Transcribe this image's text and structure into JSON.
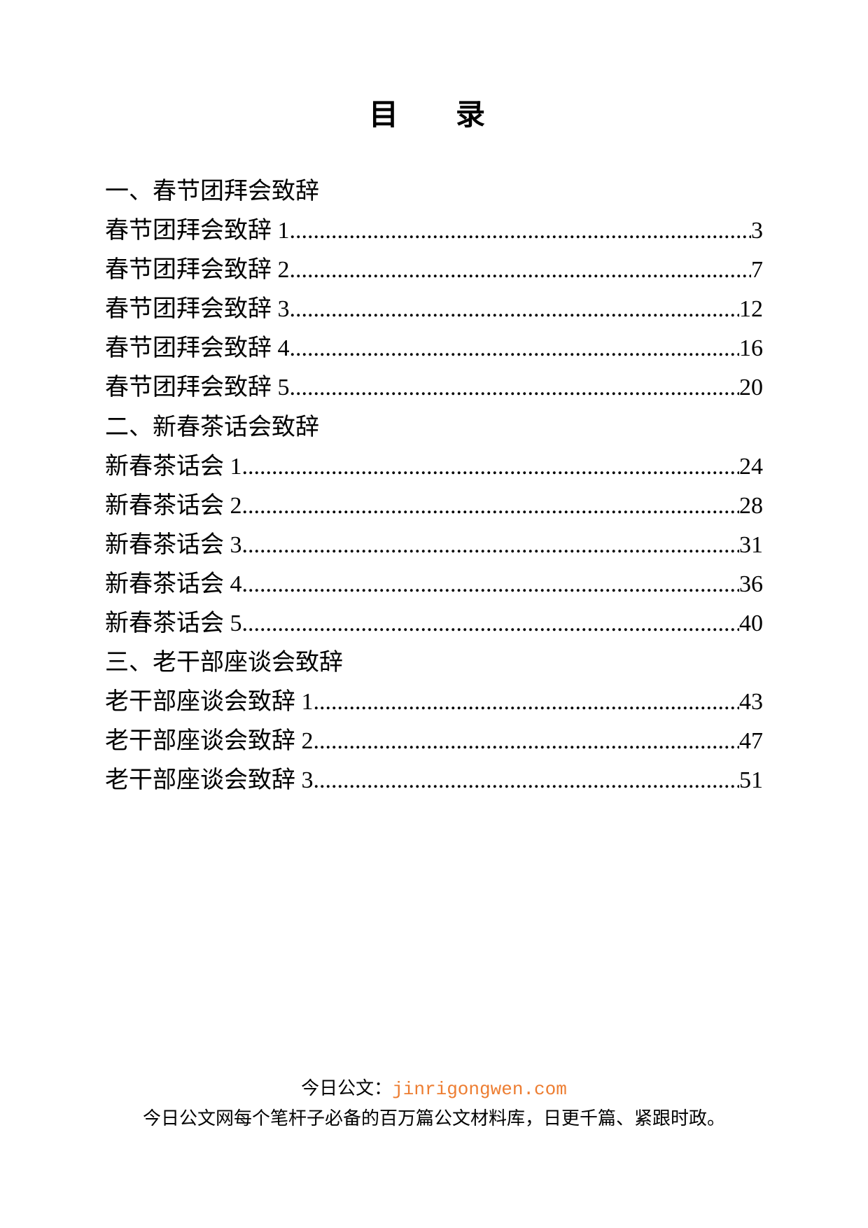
{
  "title": "目　录",
  "sections": [
    {
      "heading": "一、春节团拜会致辞",
      "entries": [
        {
          "label": "春节团拜会致辞 1",
          "page": "3"
        },
        {
          "label": "春节团拜会致辞 2",
          "page": "7"
        },
        {
          "label": "春节团拜会致辞 3",
          "page": "12"
        },
        {
          "label": "春节团拜会致辞 4",
          "page": "16"
        },
        {
          "label": "春节团拜会致辞 5",
          "page": "20"
        }
      ]
    },
    {
      "heading": "二、新春茶话会致辞",
      "entries": [
        {
          "label": "新春茶话会 1",
          "page": "24"
        },
        {
          "label": "新春茶话会 2",
          "page": "28"
        },
        {
          "label": "新春茶话会 3",
          "page": "31"
        },
        {
          "label": "新春茶话会 4",
          "page": "36"
        },
        {
          "label": "新春茶话会 5",
          "page": "40"
        }
      ]
    },
    {
      "heading": "三、老干部座谈会致辞",
      "entries": [
        {
          "label": "老干部座谈会致辞 1",
          "page": "43"
        },
        {
          "label": "老干部座谈会致辞 2",
          "page": "47"
        },
        {
          "label": "老干部座谈会致辞 3",
          "page": "51"
        }
      ]
    }
  ],
  "footer": {
    "line1_prefix": "今日公文：",
    "line1_link": "jinrigongwen.com",
    "line2": "今日公文网每个笔杆子必备的百万篇公文材料库，日更千篇、紧跟时政。"
  },
  "colors": {
    "background": "#ffffff",
    "text": "#000000",
    "link": "#ed7d31"
  },
  "typography": {
    "title_fontsize": 42,
    "body_fontsize": 34,
    "footer_fontsize": 26,
    "font_family": "SimSun"
  }
}
